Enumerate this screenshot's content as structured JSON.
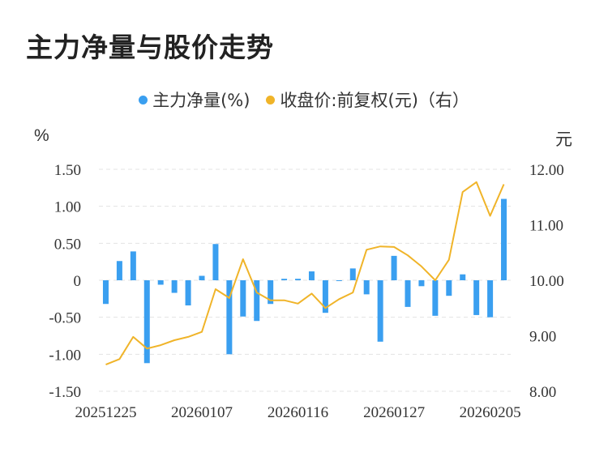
{
  "title": "主力净量与股价走势",
  "legend": [
    {
      "label": "主力净量(%)",
      "color": "#3a9ff0"
    },
    {
      "label": "收盘价:前复权(元)（右）",
      "color": "#f0b429"
    }
  ],
  "chart_data": {
    "type": "bar+line",
    "left_unit": "%",
    "right_unit": "元",
    "left_ticks": [
      "1.50",
      "1.00",
      "0.50",
      "0",
      "-0.50",
      "-1.00",
      "-1.50"
    ],
    "right_ticks": [
      "12.00",
      "11.00",
      "10.00",
      "9.00",
      "8.00"
    ],
    "x_ticks": [
      "20251225",
      "20260107",
      "20260116",
      "20260127",
      "20260205"
    ],
    "ylim_left": [
      -1.5,
      1.5
    ],
    "ylim_right": [
      8.0,
      12.0
    ],
    "series": [
      {
        "name": "主力净量(%)",
        "type": "bar",
        "color": "#3a9ff0",
        "values": [
          -0.32,
          0.26,
          0.39,
          -1.12,
          -0.06,
          -0.17,
          -0.34,
          0.06,
          0.49,
          -1.0,
          -0.49,
          -0.55,
          -0.32,
          0.02,
          0.02,
          0.12,
          -0.44,
          0.0,
          0.16,
          -0.19,
          -0.83,
          0.33,
          -0.36,
          -0.08,
          -0.48,
          -0.21,
          0.08,
          -0.47,
          -0.5,
          1.1
        ]
      },
      {
        "name": "收盘价:前复权(元)（右）",
        "type": "line",
        "color": "#f0b429",
        "values": [
          8.48,
          8.58,
          8.98,
          8.77,
          8.83,
          8.92,
          8.98,
          9.07,
          9.84,
          9.68,
          10.38,
          9.78,
          9.64,
          9.64,
          9.58,
          9.76,
          9.5,
          9.66,
          9.78,
          10.55,
          10.61,
          10.6,
          10.45,
          10.25,
          10.0,
          10.37,
          11.59,
          11.77,
          11.16,
          11.73
        ]
      }
    ],
    "grid": "horizontal-dashed"
  }
}
